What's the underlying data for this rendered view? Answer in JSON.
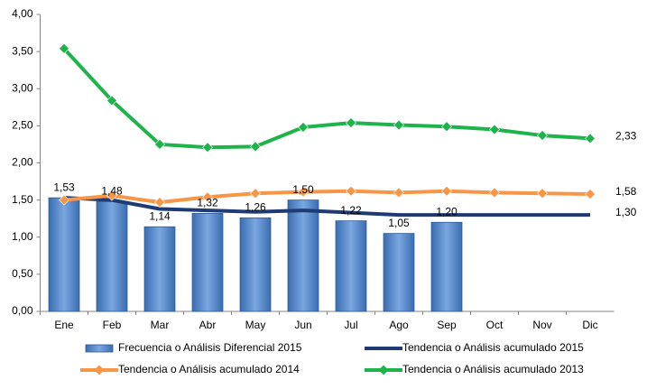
{
  "chart_data": {
    "type": "bar_line",
    "categories": [
      "Ene",
      "Feb",
      "Mar",
      "Abr",
      "May",
      "Jun",
      "Jul",
      "Ago",
      "Sep",
      "Oct",
      "Nov",
      "Dic"
    ],
    "ylim": [
      0,
      4
    ],
    "yticks": [
      {
        "value": 0,
        "label": "0,00"
      },
      {
        "value": 0.5,
        "label": "0,50"
      },
      {
        "value": 1,
        "label": "1,00"
      },
      {
        "value": 1.5,
        "label": "1,50"
      },
      {
        "value": 2,
        "label": "2,00"
      },
      {
        "value": 2.5,
        "label": "2,50"
      },
      {
        "value": 3,
        "label": "3,00"
      },
      {
        "value": 3.5,
        "label": "3,50"
      },
      {
        "value": 4,
        "label": "4,00"
      }
    ],
    "grid": false,
    "legend": "bottom",
    "series": [
      {
        "name": "Frecuencia o Análisis Diferencial 2015",
        "type": "bar",
        "color": "#4a7ebb",
        "values": [
          1.53,
          1.48,
          1.14,
          1.32,
          1.26,
          1.5,
          1.22,
          1.05,
          1.2,
          null,
          null,
          null
        ],
        "value_labels": [
          "1,53",
          "1,48",
          "1,14",
          "1,32",
          "1,26",
          "1,50",
          "1,22",
          "1,05",
          "1,20",
          null,
          null,
          null
        ]
      },
      {
        "name": "Tendencia o Análisis acumulado 2015",
        "type": "line",
        "color": "#1f3b73",
        "marker": false,
        "values": [
          1.53,
          1.5,
          1.38,
          1.36,
          1.34,
          1.36,
          1.33,
          1.3,
          1.3,
          1.3,
          1.3,
          1.3
        ],
        "value_labels": [
          null,
          null,
          null,
          null,
          null,
          null,
          null,
          null,
          null,
          null,
          null,
          "1,30"
        ]
      },
      {
        "name": "Tendencia o Análisis acumulado 2014",
        "type": "line",
        "color": "#f79646",
        "marker": true,
        "values": [
          1.5,
          1.56,
          1.47,
          1.54,
          1.59,
          1.61,
          1.62,
          1.6,
          1.62,
          1.6,
          1.59,
          1.58
        ],
        "value_labels": [
          null,
          null,
          null,
          null,
          null,
          null,
          null,
          null,
          null,
          null,
          null,
          "1,58"
        ]
      },
      {
        "name": "Tendencia o Análisis acumulado 2013",
        "type": "line",
        "color": "#1eb34b",
        "marker": true,
        "values": [
          3.54,
          2.84,
          2.25,
          2.21,
          2.22,
          2.48,
          2.54,
          2.51,
          2.49,
          2.45,
          2.37,
          2.33
        ],
        "value_labels": [
          null,
          null,
          null,
          null,
          null,
          null,
          null,
          null,
          null,
          null,
          null,
          "2,33"
        ]
      }
    ]
  }
}
